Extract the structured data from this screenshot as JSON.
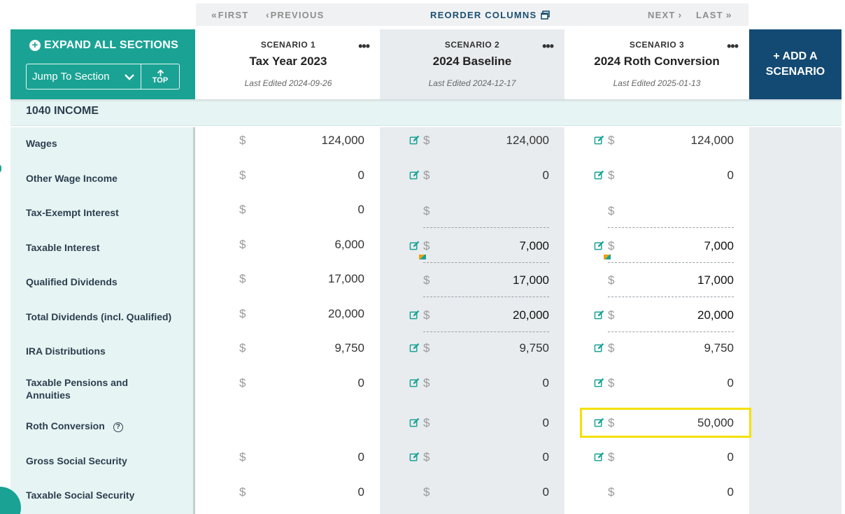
{
  "nav": {
    "first": "FIRST",
    "previous": "PREVIOUS",
    "reorder": "REORDER COLUMNS",
    "next": "NEXT",
    "last": "LAST"
  },
  "sidebar": {
    "expand_label": "EXPAND ALL SECTIONS",
    "jump_label": "Jump To Section",
    "top_label": "TOP"
  },
  "scenarios": [
    {
      "label": "SCENARIO 1",
      "name": "Tax Year 2023",
      "edited": "Last Edited 2024-09-26"
    },
    {
      "label": "SCENARIO 2",
      "name": "2024 Baseline",
      "edited": "Last Edited 2024-12-17"
    },
    {
      "label": "SCENARIO 3",
      "name": "2024 Roth Conversion",
      "edited": "Last Edited 2025-01-13"
    }
  ],
  "add_scenario": {
    "line1": "+ ADD A",
    "line2": "SCENARIO"
  },
  "section": {
    "title": "1040 INCOME"
  },
  "currency_symbol": "$",
  "rows": [
    {
      "label": "Wages",
      "v1": "124,000",
      "v2": "124,000",
      "v3": "124,000"
    },
    {
      "label": "Other Wage Income",
      "v1": "0",
      "v2": "0",
      "v3": "0"
    },
    {
      "label": "Tax-Exempt Interest",
      "v1": "0",
      "v2": "",
      "v3": ""
    },
    {
      "label": "Taxable Interest",
      "v1": "6,000",
      "v2": "7,000",
      "v3": "7,000"
    },
    {
      "label": "Qualified Dividends",
      "v1": "17,000",
      "v2": "17,000",
      "v3": "17,000"
    },
    {
      "label": "Total Dividends (incl. Qualified)",
      "v1": "20,000",
      "v2": "20,000",
      "v3": "20,000"
    },
    {
      "label": "IRA Distributions",
      "v1": "9,750",
      "v2": "9,750",
      "v3": "9,750"
    },
    {
      "label_line1": "Taxable Pensions and",
      "label_line2": "Annuities",
      "v1": "0",
      "v2": "0",
      "v3": "0"
    },
    {
      "label": "Roth Conversion",
      "v1": "",
      "v2": "0",
      "v3": "50,000"
    },
    {
      "label": "Gross Social Security",
      "v1": "0",
      "v2": "0",
      "v3": "0"
    },
    {
      "label": "Taxable Social Security",
      "v1": "0",
      "v2": "0",
      "v3": "0"
    }
  ],
  "colors": {
    "teal": "#1aa394",
    "navy": "#134a73",
    "highlight": "#f5e000"
  }
}
